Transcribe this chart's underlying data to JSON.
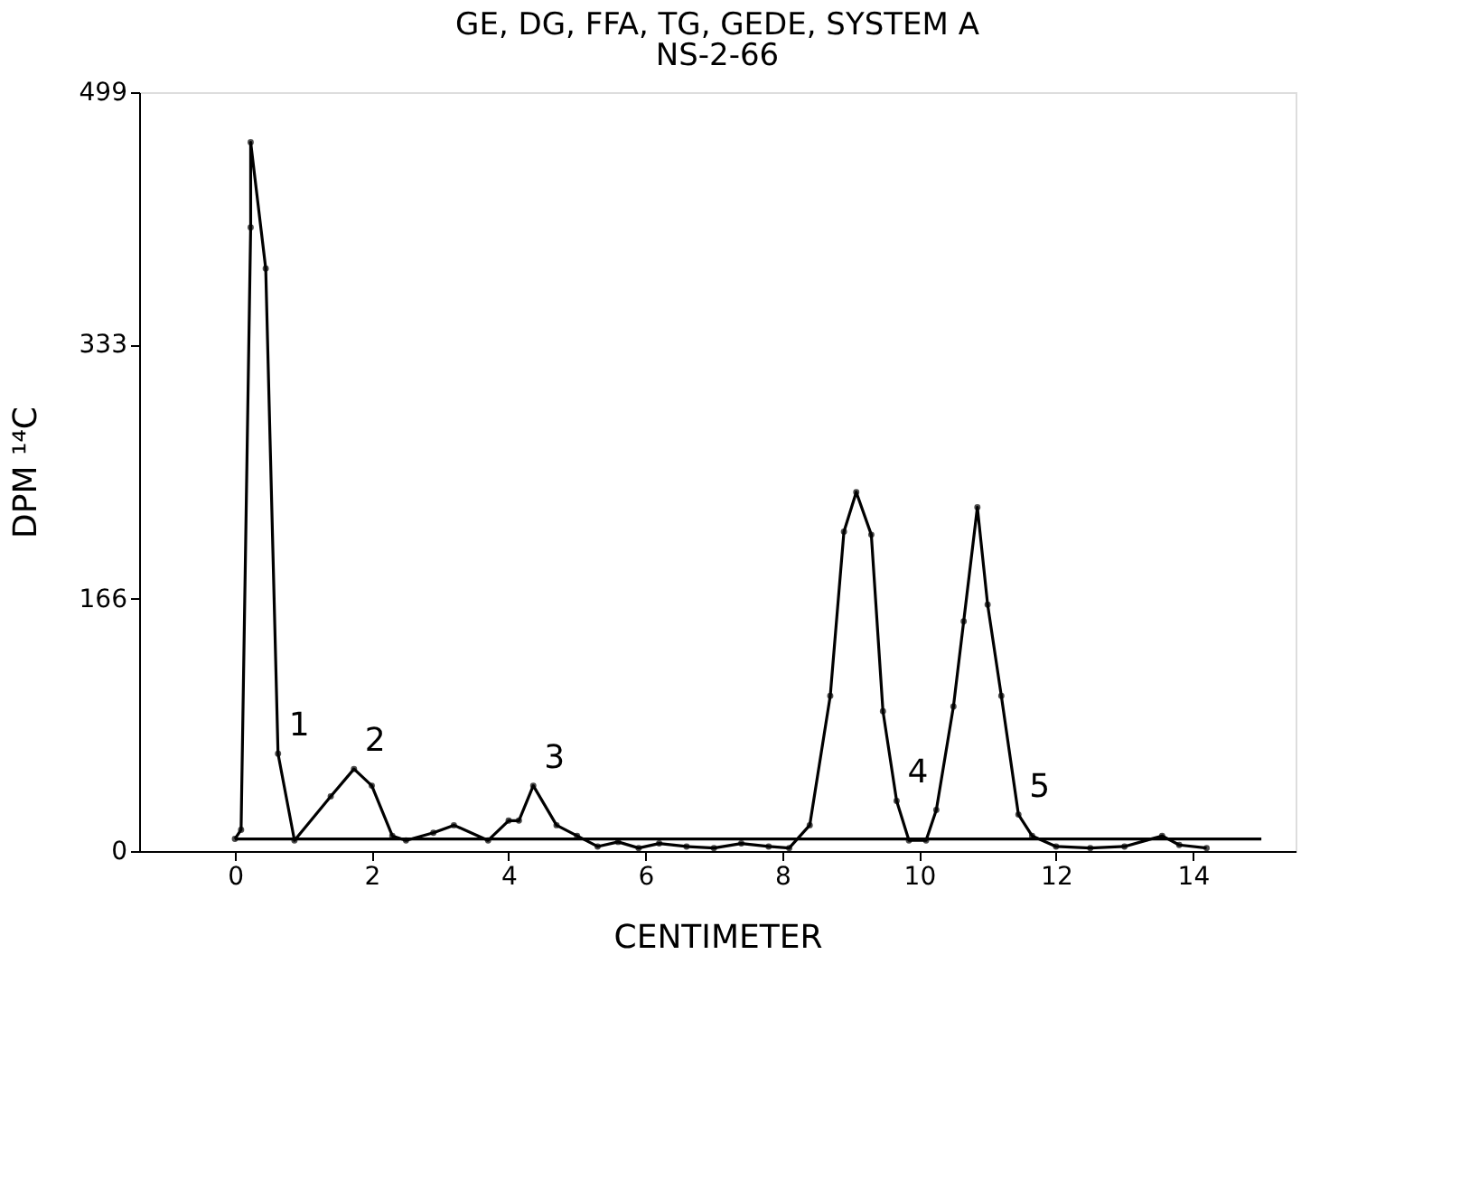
{
  "chart_data": {
    "type": "line",
    "title": "GE, DG, FFA, TG, GEDE, SYSTEM A",
    "subtitle": "NS-2-66",
    "xlabel": "CENTIMETER",
    "ylabel": "DPM ¹⁴C",
    "xlim": [
      -1.4,
      15.5
    ],
    "xticks": [
      0,
      2,
      4,
      6,
      8,
      10,
      12,
      14
    ],
    "ylim": [
      0,
      499
    ],
    "yticks": [
      0,
      166,
      333,
      499
    ],
    "grid": false,
    "marker": "circle",
    "line_style": "solid",
    "series": [
      {
        "color": "#000000",
        "x": [
          0.0,
          0.09,
          0.23,
          0.23,
          0.45,
          0.63,
          0.87,
          1.4,
          1.74,
          2.0,
          2.3,
          2.5,
          2.9,
          3.2,
          3.7,
          4.0,
          4.15,
          4.36,
          4.7,
          5.0,
          5.3,
          5.6,
          5.9,
          6.2,
          6.6,
          7.0,
          7.4,
          7.8,
          8.1,
          8.4,
          8.7,
          8.9,
          9.08,
          9.3,
          9.47,
          9.67,
          9.85,
          10.1,
          10.25,
          10.5,
          10.65,
          10.85,
          11.0,
          11.2,
          11.45,
          11.65,
          12.0,
          12.5,
          13.0,
          13.55,
          13.8,
          14.2
        ],
        "values": [
          8,
          14,
          410,
          466,
          383,
          64,
          7,
          36,
          54,
          43,
          10,
          7,
          12,
          17,
          7,
          20,
          20,
          43,
          17,
          10,
          3,
          6,
          2,
          5,
          3,
          2,
          5,
          3,
          2,
          17,
          102,
          210,
          236,
          208,
          92,
          33,
          7,
          7,
          27,
          95,
          151,
          226,
          162,
          102,
          24,
          10,
          3,
          2,
          3,
          10,
          4,
          2
        ]
      },
      {
        "color": "#000000",
        "x": [
          0,
          15
        ],
        "values": [
          8,
          8
        ],
        "marker": "none"
      }
    ],
    "annotations": [
      {
        "text": "1",
        "x": 0.63,
        "y": 64
      },
      {
        "text": "2",
        "x": 1.74,
        "y": 54
      },
      {
        "text": "3",
        "x": 4.36,
        "y": 43
      },
      {
        "text": "4",
        "x": 9.67,
        "y": 33
      },
      {
        "text": "5",
        "x": 11.45,
        "y": 24
      }
    ]
  }
}
